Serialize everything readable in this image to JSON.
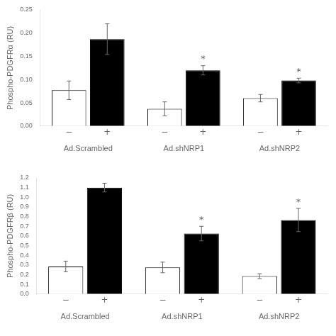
{
  "chart_data": [
    {
      "type": "bar",
      "ylabel": "Phospho-PDGFRα (RU)",
      "categories": [
        "Ad.Scrambled",
        "Ad.shNRP1",
        "Ad.shNRP2"
      ],
      "series": [
        {
          "name": "−",
          "color": "#ffffff",
          "values": [
            0.077,
            0.037,
            0.06
          ],
          "errors": [
            0.02,
            0.015,
            0.008
          ]
        },
        {
          "name": "+",
          "color": "#000000",
          "values": [
            0.187,
            0.12,
            0.098
          ],
          "errors": [
            0.033,
            0.01,
            0.005
          ]
        }
      ],
      "ylim": [
        0,
        0.25
      ],
      "yticks": [
        {
          "value": 0,
          "label": "0.00"
        },
        0.05,
        {
          "value": 0.1,
          "label": "0.10"
        },
        0.15,
        {
          "value": 0.2,
          "label": "0.20"
        },
        0.25
      ],
      "grid": false,
      "annotations": [
        {
          "text": "*",
          "category": "Ad.shNRP1",
          "series": "+"
        },
        {
          "text": "*",
          "category": "Ad.shNRP2",
          "series": "+"
        }
      ]
    },
    {
      "type": "bar",
      "ylabel": "Phospho-PDGFRβ (RU)",
      "categories": [
        "Ad.Scrambled",
        "Ad.shNRP1",
        "Ad.shNRP2"
      ],
      "series": [
        {
          "name": "−",
          "color": "#ffffff",
          "values": [
            0.285,
            0.275,
            0.185
          ],
          "errors": [
            0.055,
            0.055,
            0.025
          ]
        },
        {
          "name": "+",
          "color": "#000000",
          "values": [
            1.1,
            0.625,
            0.765
          ],
          "errors": [
            0.045,
            0.075,
            0.12
          ]
        }
      ],
      "ylim": [
        0,
        1.2
      ],
      "yticks": [
        {
          "value": 0,
          "label": "0.0"
        },
        0.1,
        0.2,
        0.3,
        0.4,
        0.5,
        0.6,
        0.7,
        0.8,
        0.9,
        {
          "value": 1,
          "label": "1.0"
        },
        1.1,
        1.2
      ],
      "grid": false,
      "annotations": [
        {
          "text": "*",
          "category": "Ad.shNRP1",
          "series": "+"
        },
        {
          "text": "*",
          "category": "Ad.shNRP2",
          "series": "+"
        }
      ]
    }
  ]
}
